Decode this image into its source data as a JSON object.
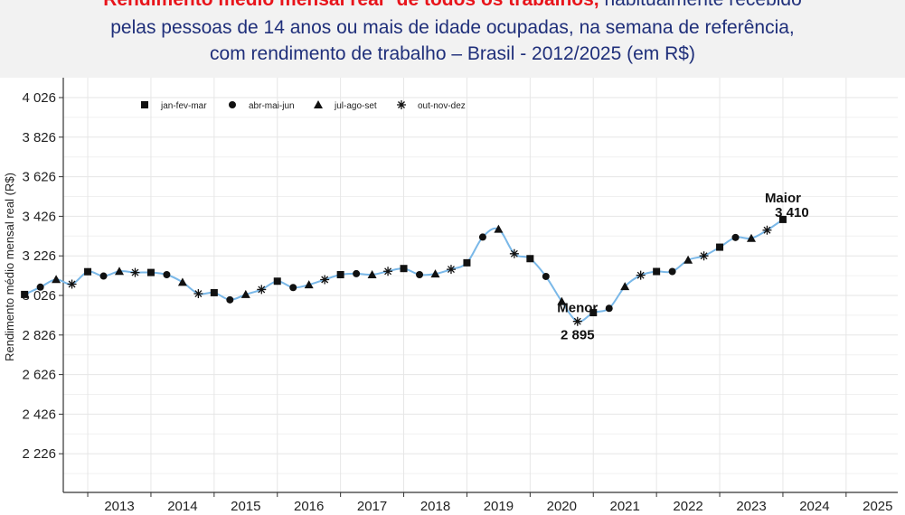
{
  "title": {
    "line1_red": "Rendimento médio mensal real* de todos os trabalhos,",
    "line1_rest": " habitualmente recebido",
    "line2": "pelas pessoas de 14 anos ou mais de idade ocupadas, na semana de referência,",
    "line3": "com rendimento de trabalho – Brasil - 2012/2025 (em R$)"
  },
  "colors": {
    "title_blue": "#1f2f7a",
    "title_red": "#e8141b",
    "line": "#7ab8e8",
    "header_bg": "#f2f2f2"
  },
  "chart_data": {
    "type": "line",
    "ylabel": "Rendimento médio mensal real (R$)",
    "ylim": [
      2126,
      4026
    ],
    "yticks": [
      4026,
      3826,
      3626,
      3426,
      3226,
      3026,
      2826,
      2626,
      2426,
      2226
    ],
    "ytick_labels": [
      "4 026",
      "3 826",
      "3 626",
      "3 426",
      "3 226",
      "3 026",
      "2 826",
      "2 626",
      "2 426",
      "2 226"
    ],
    "xticks": [
      "2013",
      "2014",
      "2015",
      "2016",
      "2017",
      "2018",
      "2019",
      "2020",
      "2021",
      "2022",
      "2023",
      "2024",
      "2025"
    ],
    "grid": true,
    "legend_position": "top-left",
    "legend": [
      {
        "marker": "square",
        "label": "jan-fev-mar"
      },
      {
        "marker": "circle",
        "label": "abr-mai-jun"
      },
      {
        "marker": "triangle",
        "label": "jul-ago-set"
      },
      {
        "marker": "asterisk",
        "label": "out-nov-dez"
      }
    ],
    "series": [
      {
        "year": 2012,
        "q": 1,
        "value": 3031
      },
      {
        "year": 2012,
        "q": 2,
        "value": 3068
      },
      {
        "year": 2012,
        "q": 3,
        "value": 3107
      },
      {
        "year": 2012,
        "q": 4,
        "value": 3083
      },
      {
        "year": 2013,
        "q": 1,
        "value": 3146
      },
      {
        "year": 2013,
        "q": 2,
        "value": 3124
      },
      {
        "year": 2013,
        "q": 3,
        "value": 3148
      },
      {
        "year": 2013,
        "q": 4,
        "value": 3142
      },
      {
        "year": 2014,
        "q": 1,
        "value": 3142
      },
      {
        "year": 2014,
        "q": 2,
        "value": 3131
      },
      {
        "year": 2014,
        "q": 3,
        "value": 3093
      },
      {
        "year": 2014,
        "q": 4,
        "value": 3035
      },
      {
        "year": 2015,
        "q": 1,
        "value": 3040
      },
      {
        "year": 2015,
        "q": 2,
        "value": 3004
      },
      {
        "year": 2015,
        "q": 3,
        "value": 3031
      },
      {
        "year": 2015,
        "q": 4,
        "value": 3056
      },
      {
        "year": 2016,
        "q": 1,
        "value": 3098
      },
      {
        "year": 2016,
        "q": 2,
        "value": 3066
      },
      {
        "year": 2016,
        "q": 3,
        "value": 3080
      },
      {
        "year": 2016,
        "q": 4,
        "value": 3106
      },
      {
        "year": 2017,
        "q": 1,
        "value": 3131
      },
      {
        "year": 2017,
        "q": 2,
        "value": 3136
      },
      {
        "year": 2017,
        "q": 3,
        "value": 3131
      },
      {
        "year": 2017,
        "q": 4,
        "value": 3148
      },
      {
        "year": 2018,
        "q": 1,
        "value": 3162
      },
      {
        "year": 2018,
        "q": 2,
        "value": 3131
      },
      {
        "year": 2018,
        "q": 3,
        "value": 3135
      },
      {
        "year": 2018,
        "q": 4,
        "value": 3158
      },
      {
        "year": 2019,
        "q": 1,
        "value": 3191
      },
      {
        "year": 2019,
        "q": 2,
        "value": 3321
      },
      {
        "year": 2019,
        "q": 3,
        "value": 3361
      },
      {
        "year": 2019,
        "q": 4,
        "value": 3237
      },
      {
        "year": 2020,
        "q": 1,
        "value": 3212
      },
      {
        "year": 2020,
        "q": 2,
        "value": 3122
      },
      {
        "year": 2020,
        "q": 3,
        "value": 2996
      },
      {
        "year": 2020,
        "q": 4,
        "value": 2895
      },
      {
        "year": 2021,
        "q": 1,
        "value": 2939
      },
      {
        "year": 2021,
        "q": 2,
        "value": 2961
      },
      {
        "year": 2021,
        "q": 3,
        "value": 3071
      },
      {
        "year": 2021,
        "q": 4,
        "value": 3128
      },
      {
        "year": 2022,
        "q": 1,
        "value": 3147
      },
      {
        "year": 2022,
        "q": 2,
        "value": 3147
      },
      {
        "year": 2022,
        "q": 3,
        "value": 3205
      },
      {
        "year": 2022,
        "q": 4,
        "value": 3226
      },
      {
        "year": 2023,
        "q": 1,
        "value": 3270
      },
      {
        "year": 2023,
        "q": 2,
        "value": 3319
      },
      {
        "year": 2023,
        "q": 3,
        "value": 3315
      },
      {
        "year": 2023,
        "q": 4,
        "value": 3356
      },
      {
        "year": 2024,
        "q": 1,
        "value": 3410
      }
    ],
    "annotations": {
      "min_label": "Menor",
      "min_value": "2 895",
      "max_label": "Maior",
      "max_value": "3 410"
    }
  }
}
